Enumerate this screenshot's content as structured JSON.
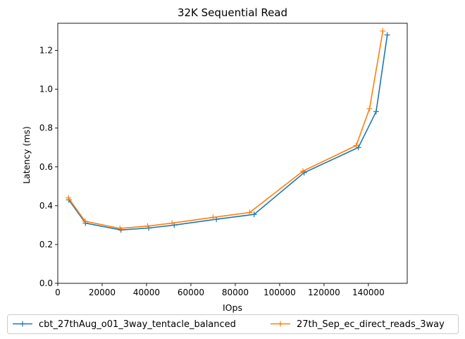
{
  "chart_data": {
    "type": "line",
    "title": "32K  Sequential Read",
    "xlabel": "IOps",
    "ylabel": "Latency (ms)",
    "xlim": [
      0,
      157500
    ],
    "ylim": [
      0,
      1.34
    ],
    "x_ticks": [
      0,
      20000,
      40000,
      60000,
      80000,
      100000,
      120000,
      140000
    ],
    "y_ticks": [
      0.0,
      0.2,
      0.4,
      0.6,
      0.8,
      1.0,
      1.2
    ],
    "x_tick_labels": [
      "0",
      "20000",
      "40000",
      "60000",
      "80000",
      "100000",
      "120000",
      "140000"
    ],
    "y_tick_labels": [
      "0.0",
      "0.2",
      "0.4",
      "0.6",
      "0.8",
      "1.0",
      "1.2"
    ],
    "grid": false,
    "legend_position": "bottom-center-outside",
    "series": [
      {
        "name": "cbt_27thAug_o01_3way_tentacle_balanced",
        "color": "#1f77b4",
        "marker": "+",
        "x": [
          5000,
          12500,
          28500,
          41000,
          52500,
          71500,
          88500,
          111000,
          135500,
          143500,
          148500
        ],
        "y": [
          0.43,
          0.31,
          0.275,
          0.285,
          0.3,
          0.33,
          0.355,
          0.57,
          0.7,
          0.885,
          1.28
        ]
      },
      {
        "name": "27th_Sep_ec_direct_reads_3way",
        "color": "#ff7f0e",
        "marker": "+",
        "x": [
          4800,
          12300,
          28000,
          40500,
          51500,
          70000,
          86500,
          110500,
          134500,
          140500,
          146500
        ],
        "y": [
          0.44,
          0.32,
          0.283,
          0.295,
          0.31,
          0.34,
          0.365,
          0.578,
          0.71,
          0.9,
          1.3
        ]
      }
    ]
  }
}
